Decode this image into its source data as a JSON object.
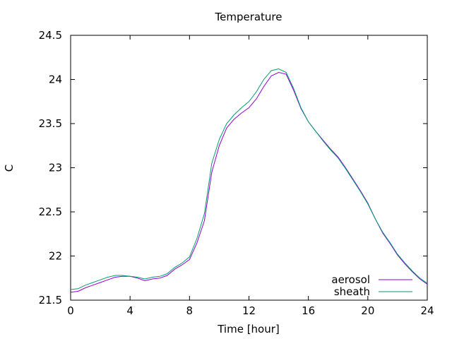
{
  "chart_data": {
    "type": "line",
    "title": "Temperature",
    "xlabel": "Time [hour]",
    "ylabel": "C",
    "xlim": [
      0,
      24
    ],
    "ylim": [
      21.5,
      24.5
    ],
    "xticks": [
      0,
      4,
      8,
      12,
      16,
      20,
      24
    ],
    "yticks": [
      21.5,
      22,
      22.5,
      23,
      23.5,
      24,
      24.5
    ],
    "xtick_labels": [
      "0",
      "4",
      "8",
      "12",
      "16",
      "20",
      "24"
    ],
    "ytick_labels": [
      "21.5",
      "22",
      "22.5",
      "23",
      "23.5",
      "24",
      "24.5"
    ],
    "grid": false,
    "legend_position": "bottom-right",
    "series": [
      {
        "name": "aerosol",
        "color": "#9400d3",
        "x": [
          0,
          0.5,
          1,
          1.5,
          2,
          2.5,
          3,
          3.5,
          4,
          4.5,
          5,
          5.5,
          6,
          6.5,
          7,
          7.5,
          8,
          8.5,
          9,
          9.5,
          10,
          10.5,
          11,
          11.5,
          12,
          12.5,
          13,
          13.5,
          14,
          14.5,
          15,
          15.5,
          16,
          16.5,
          17,
          17.5,
          18,
          18.5,
          19,
          19.5,
          20,
          20.5,
          21,
          21.5,
          22,
          22.5,
          23,
          23.5,
          24
        ],
        "y": [
          21.59,
          21.6,
          21.64,
          21.67,
          21.7,
          21.73,
          21.76,
          21.77,
          21.77,
          21.75,
          21.72,
          21.74,
          21.75,
          21.78,
          21.85,
          21.9,
          21.96,
          22.15,
          22.4,
          22.95,
          23.25,
          23.45,
          23.55,
          23.62,
          23.68,
          23.78,
          23.92,
          24.04,
          24.08,
          24.06,
          23.88,
          23.67,
          23.52,
          23.41,
          23.31,
          23.21,
          23.12,
          23.0,
          22.87,
          22.74,
          22.6,
          22.42,
          22.26,
          22.14,
          22.01,
          21.91,
          21.82,
          21.74,
          21.68
        ]
      },
      {
        "name": "sheath",
        "color": "#009e73",
        "x": [
          0,
          0.5,
          1,
          1.5,
          2,
          2.5,
          3,
          3.5,
          4,
          4.5,
          5,
          5.5,
          6,
          6.5,
          7,
          7.5,
          8,
          8.5,
          9,
          9.5,
          10,
          10.5,
          11,
          11.5,
          12,
          12.5,
          13,
          13.5,
          14,
          14.5,
          15,
          15.5,
          16,
          16.5,
          17,
          17.5,
          18,
          18.5,
          19,
          19.5,
          20,
          20.5,
          21,
          21.5,
          22,
          22.5,
          23,
          23.5,
          24
        ],
        "y": [
          21.62,
          21.63,
          21.67,
          21.7,
          21.73,
          21.76,
          21.78,
          21.78,
          21.77,
          21.76,
          21.74,
          21.76,
          21.77,
          21.8,
          21.87,
          21.92,
          21.99,
          22.2,
          22.48,
          23.05,
          23.32,
          23.5,
          23.6,
          23.68,
          23.75,
          23.86,
          24.0,
          24.1,
          24.12,
          24.08,
          23.9,
          23.68,
          23.52,
          23.41,
          23.3,
          23.2,
          23.11,
          22.99,
          22.86,
          22.73,
          22.59,
          22.42,
          22.27,
          22.15,
          22.02,
          21.92,
          21.83,
          21.75,
          21.69
        ]
      }
    ]
  }
}
